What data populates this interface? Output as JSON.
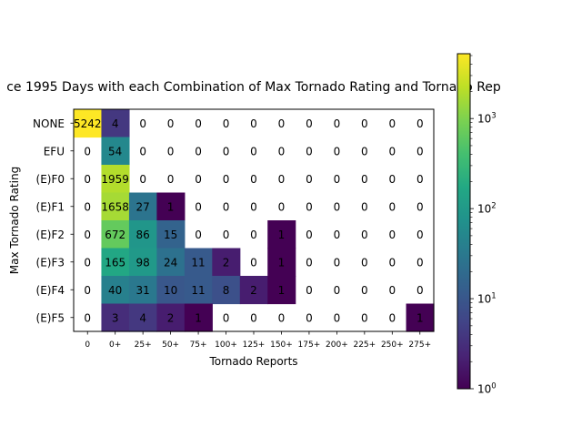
{
  "chart_data": {
    "type": "heatmap",
    "title": "ce 1995 Days with each Combination of Max Tornado Rating and Tornado Rep",
    "xlabel": "Tornado Reports",
    "ylabel": "Max Tornado Rating",
    "x_categories": [
      "0",
      "0+",
      "25+",
      "50+",
      "75+",
      "100+",
      "125+",
      "150+",
      "175+",
      "200+",
      "225+",
      "250+",
      "275+"
    ],
    "y_categories": [
      "NONE",
      "EFU",
      "(E)F0",
      "(E)F1",
      "(E)F2",
      "(E)F3",
      "(E)F4",
      "(E)F5"
    ],
    "values": [
      [
        5242,
        4,
        0,
        0,
        0,
        0,
        0,
        0,
        0,
        0,
        0,
        0,
        0
      ],
      [
        0,
        54,
        0,
        0,
        0,
        0,
        0,
        0,
        0,
        0,
        0,
        0,
        0
      ],
      [
        0,
        1959,
        0,
        0,
        0,
        0,
        0,
        0,
        0,
        0,
        0,
        0,
        0
      ],
      [
        0,
        1658,
        27,
        1,
        0,
        0,
        0,
        0,
        0,
        0,
        0,
        0,
        0
      ],
      [
        0,
        672,
        86,
        15,
        0,
        0,
        0,
        1,
        0,
        0,
        0,
        0,
        0
      ],
      [
        0,
        165,
        98,
        24,
        11,
        2,
        0,
        1,
        0,
        0,
        0,
        0,
        0
      ],
      [
        0,
        40,
        31,
        10,
        11,
        8,
        2,
        1,
        0,
        0,
        0,
        0,
        0
      ],
      [
        0,
        3,
        4,
        2,
        1,
        0,
        0,
        0,
        0,
        0,
        0,
        0,
        1
      ]
    ],
    "color_scale": "viridis",
    "scale": "log",
    "colorbar": {
      "range": [
        1,
        5242
      ],
      "ticks": [
        {
          "value": 1,
          "base": "10",
          "exp": "0"
        },
        {
          "value": 10,
          "base": "10",
          "exp": "1"
        },
        {
          "value": 100,
          "base": "10",
          "exp": "2"
        },
        {
          "value": 1000,
          "base": "10",
          "exp": "3"
        }
      ]
    },
    "zero_cells": "blank"
  }
}
